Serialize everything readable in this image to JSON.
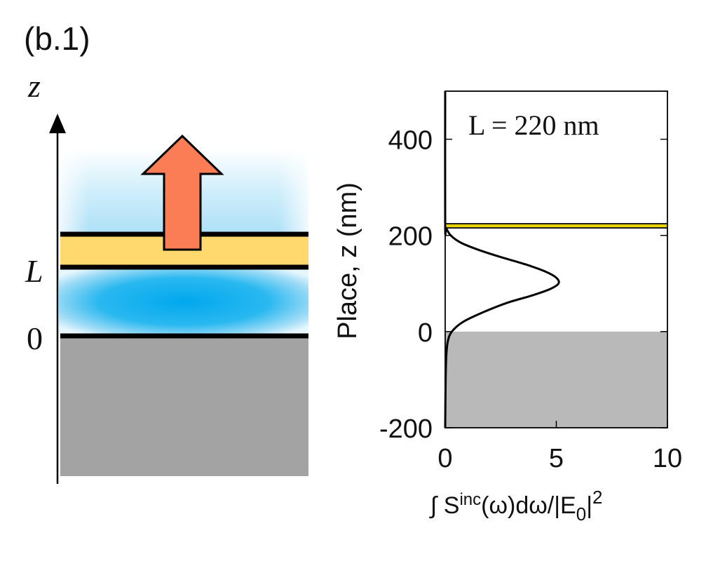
{
  "figure": {
    "panel_label": "(b.1)",
    "axis_label_z": "z",
    "level_L": "L",
    "level_zero": "0"
  },
  "colors": {
    "field_blue": "#00a8ee",
    "field_blue_light": "#b8e6f8",
    "film_yellow": "#ffd86e",
    "substrate_gray": "#a3a3a3",
    "arrow_orange": "#fb7d55",
    "interface_line": "#000000",
    "yellow_line": "#e8d200"
  },
  "chart_data": {
    "type": "line",
    "annotation": "L = 220 nm",
    "ylabel": "Place, z (nm)",
    "xlabel": "∫ S",
    "xlabel_sup": "inc",
    "xlabel_mid": "(ω)dω/|E",
    "xlabel_sub": "0",
    "xlabel_end": "|",
    "xlabel_sup2": "2",
    "xlim": [
      0,
      10
    ],
    "ylim": [
      -200,
      500
    ],
    "x_ticks": [
      0,
      5,
      10
    ],
    "x_tick_labels": [
      "0",
      "5",
      "10"
    ],
    "y_ticks": [
      -200,
      0,
      200,
      400
    ],
    "y_tick_labels": [
      "-200",
      "0",
      "200",
      "400"
    ],
    "grid": false,
    "shaded_region_below": 0,
    "horizontal_line_y": 220,
    "series": [
      {
        "x": [
          0.0,
          0.02,
          0.05,
          0.12,
          0.3,
          0.8,
          1.7,
          2.8,
          3.9,
          4.7,
          5.1,
          5.0,
          4.5,
          3.6,
          2.5,
          1.5,
          0.7,
          0.25,
          0.05,
          0.0,
          0.0
        ],
        "y": [
          -200,
          -100,
          -50,
          -20,
          0,
          20,
          40,
          60,
          75,
          88,
          100,
          112,
          125,
          140,
          155,
          170,
          185,
          200,
          215,
          225,
          500
        ]
      }
    ]
  }
}
